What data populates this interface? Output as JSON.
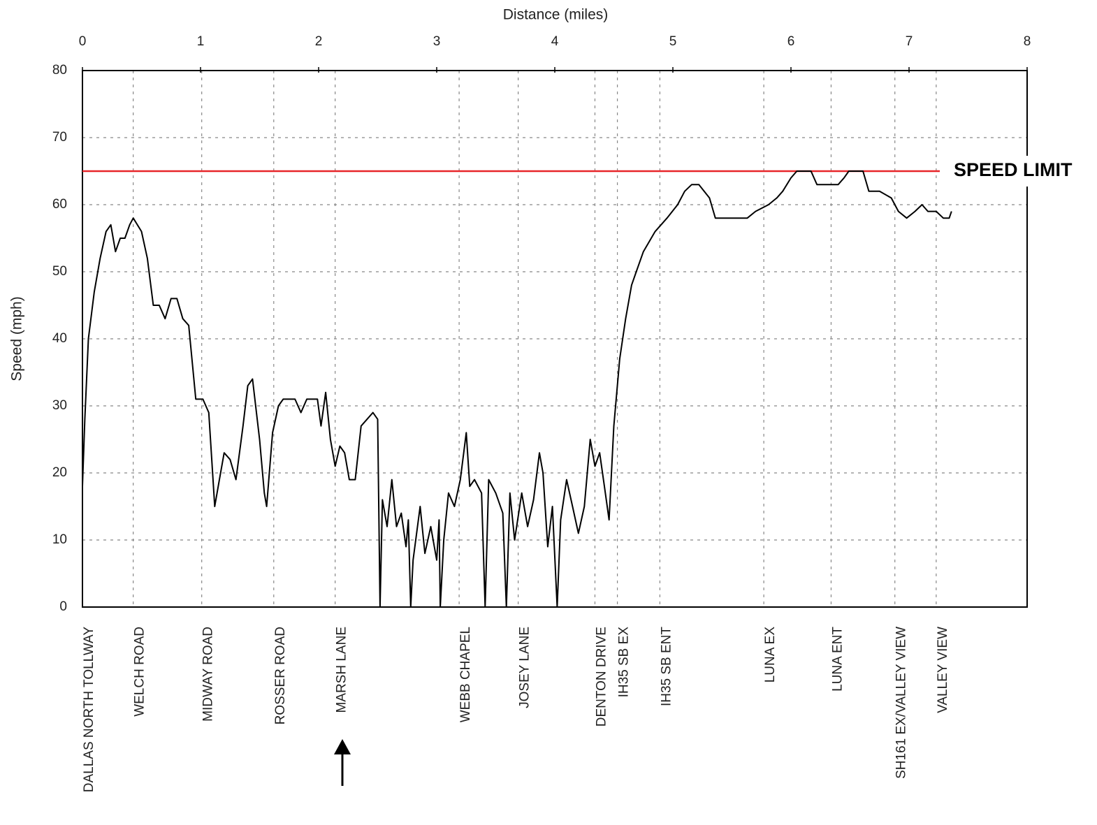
{
  "chart_data": {
    "type": "line",
    "x_label": "Distance (miles)",
    "y_label": "Speed (mph)",
    "xlim": [
      0,
      8
    ],
    "xticks": [
      0,
      1,
      2,
      3,
      4,
      5,
      6,
      7,
      8
    ],
    "ylim": [
      0,
      80
    ],
    "yticks": [
      0,
      10,
      20,
      30,
      40,
      50,
      60,
      70,
      80
    ],
    "grid": true,
    "color": "#000000",
    "x": [
      0,
      0.02,
      0.05,
      0.1,
      0.15,
      0.2,
      0.24,
      0.28,
      0.32,
      0.36,
      0.4,
      0.43,
      0.5,
      0.55,
      0.6,
      0.65,
      0.7,
      0.75,
      0.8,
      0.85,
      0.9,
      0.96,
      1.02,
      1.07,
      1.12,
      1.16,
      1.2,
      1.25,
      1.3,
      1.36,
      1.4,
      1.44,
      1.5,
      1.54,
      1.56,
      1.61,
      1.66,
      1.7,
      1.8,
      1.85,
      1.9,
      1.99,
      2.02,
      2.06,
      2.1,
      2.14,
      2.18,
      2.22,
      2.26,
      2.31,
      2.36,
      2.41,
      2.46,
      2.5,
      2.52,
      2.54,
      2.58,
      2.62,
      2.66,
      2.7,
      2.74,
      2.76,
      2.78,
      2.8,
      2.86,
      2.9,
      2.95,
      3.0,
      3.02,
      3.03,
      3.06,
      3.1,
      3.15,
      3.2,
      3.25,
      3.28,
      3.32,
      3.38,
      3.41,
      3.44,
      3.5,
      3.56,
      3.59,
      3.62,
      3.66,
      3.72,
      3.77,
      3.82,
      3.87,
      3.9,
      3.94,
      3.98,
      4.02,
      4.05,
      4.1,
      4.15,
      4.2,
      4.25,
      4.3,
      4.34,
      4.38,
      4.42,
      4.46,
      4.5,
      4.55,
      4.6,
      4.65,
      4.69,
      4.75,
      4.85,
      4.95,
      5.04,
      5.1,
      5.16,
      5.22,
      5.31,
      5.36,
      5.5,
      5.63,
      5.7,
      5.81,
      5.88,
      5.93,
      6.0,
      6.05,
      6.17,
      6.22,
      6.4,
      6.45,
      6.49,
      6.61,
      6.66,
      6.75,
      6.85,
      6.91,
      6.98,
      7.05,
      7.11,
      7.16,
      7.23,
      7.29,
      7.34,
      7.36
    ],
    "values": [
      18,
      28,
      40,
      47,
      52,
      56,
      57,
      53,
      55,
      55,
      57,
      58,
      56,
      52,
      45,
      45,
      43,
      46,
      46,
      43,
      42,
      31,
      31,
      29,
      15,
      19,
      23,
      22,
      19,
      27,
      33,
      34,
      25,
      17,
      15,
      26,
      30,
      31,
      31,
      29,
      31,
      31,
      27,
      32,
      25,
      21,
      24,
      23,
      19,
      19,
      27,
      28,
      29,
      28,
      0,
      16,
      12,
      19,
      12,
      14,
      9,
      13,
      0,
      7,
      15,
      8,
      12,
      7,
      13,
      0,
      10,
      17,
      15,
      19,
      26,
      18,
      19,
      17,
      0,
      19,
      17,
      14,
      0,
      17,
      10,
      17,
      12,
      16,
      23,
      20,
      9,
      15,
      0,
      13,
      19,
      15,
      11,
      15,
      25,
      21,
      23,
      18,
      13,
      27,
      37,
      43,
      48,
      50,
      53,
      56,
      58,
      60,
      62,
      63,
      63,
      61,
      58,
      58,
      58,
      59,
      60,
      61,
      62,
      64,
      65,
      65,
      63,
      63,
      64,
      65,
      65,
      62,
      62,
      61,
      59,
      58,
      59,
      60,
      59,
      59,
      58,
      58,
      59
    ],
    "speed_limit": {
      "value": 65,
      "label": "SPEED LIMIT",
      "color": "#e8262a"
    },
    "landmarks": [
      {
        "name": "DALLAS NORTH TOLLWAY",
        "x": 0
      },
      {
        "name": "WELCH ROAD",
        "x": 0.43
      },
      {
        "name": "MIDWAY ROAD",
        "x": 1.01
      },
      {
        "name": "ROSSER ROAD",
        "x": 1.62
      },
      {
        "name": "MARSH LANE",
        "x": 2.14
      },
      {
        "name": "WEBB CHAPEL",
        "x": 3.19
      },
      {
        "name": "JOSEY LANE",
        "x": 3.69
      },
      {
        "name": "DENTON DRIVE",
        "x": 4.34
      },
      {
        "name": "IH35 SB EX",
        "x": 4.53
      },
      {
        "name": "IH35 SB ENT",
        "x": 4.89
      },
      {
        "name": "LUNA EX",
        "x": 5.77
      },
      {
        "name": "LUNA ENT",
        "x": 6.34
      },
      {
        "name": "SH161 EX/VALLEY VIEW",
        "x": 6.88
      },
      {
        "name": "VALLEY VIEW",
        "x": 7.23
      }
    ]
  }
}
